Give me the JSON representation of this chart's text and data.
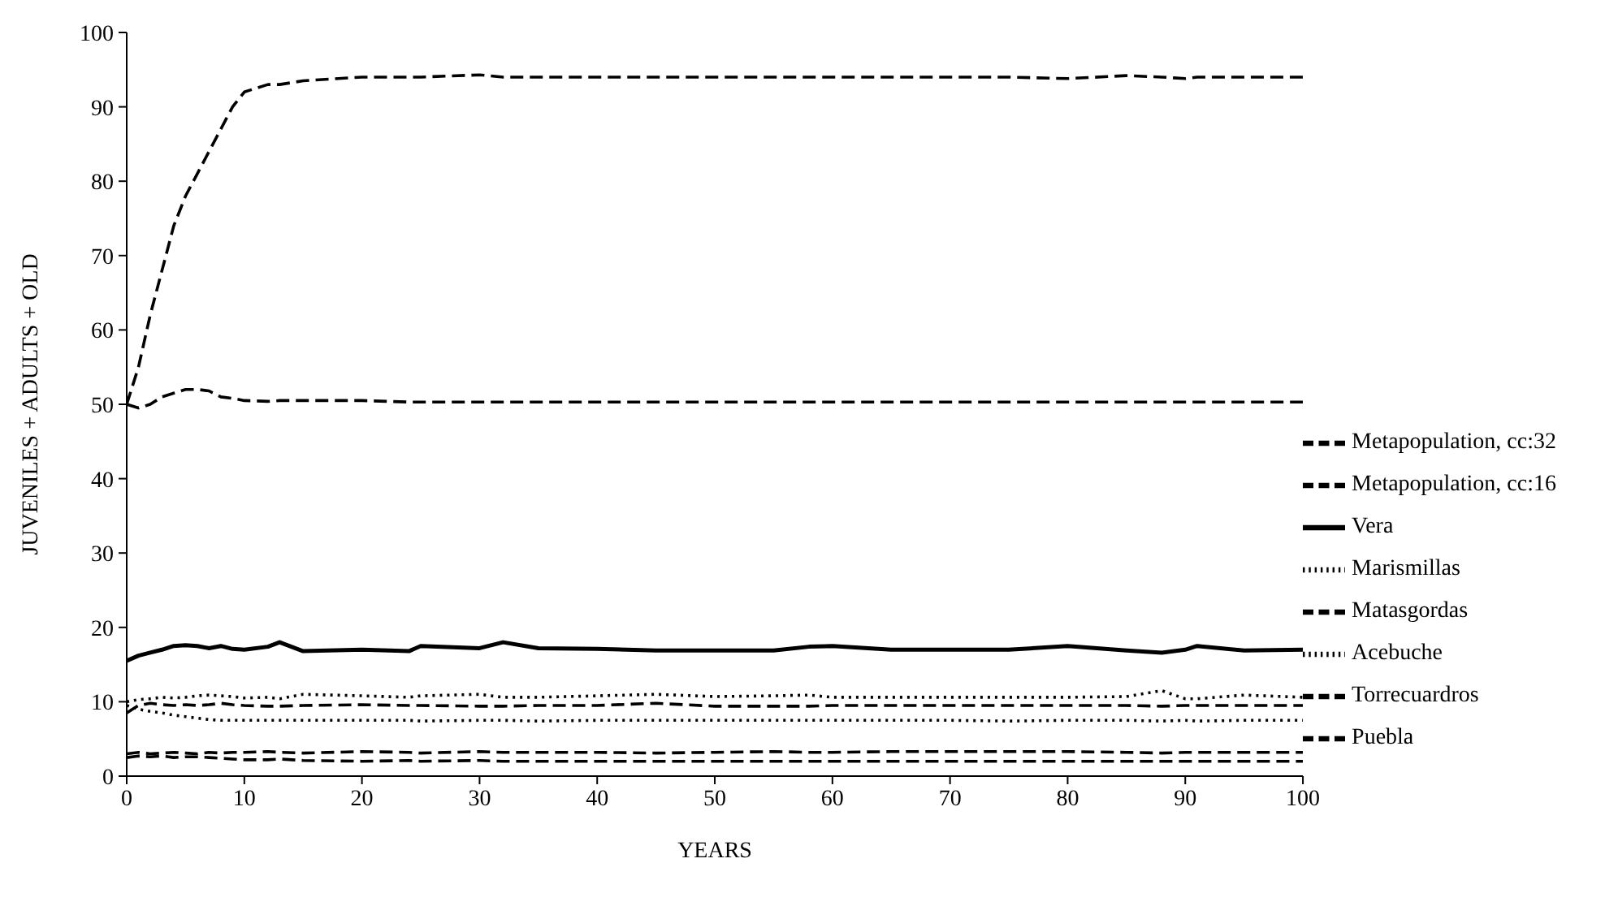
{
  "chart_data": {
    "type": "line",
    "xlabel": "YEARS",
    "ylabel": "JUVENILES + ADULTS + OLD",
    "x": [
      0,
      1,
      2,
      3,
      4,
      5,
      6,
      7,
      8,
      9,
      10,
      12,
      13,
      15,
      20,
      24,
      25,
      30,
      32,
      35,
      40,
      45,
      50,
      55,
      58,
      60,
      65,
      70,
      75,
      80,
      85,
      88,
      90,
      91,
      95,
      100
    ],
    "xlim": [
      0,
      100
    ],
    "xticks": [
      0,
      10,
      20,
      30,
      40,
      50,
      60,
      70,
      80,
      90,
      100
    ],
    "ylim": [
      0,
      100
    ],
    "yticks": [
      0,
      10,
      20,
      30,
      40,
      50,
      60,
      70,
      80,
      90,
      100
    ],
    "grid": false,
    "legend": "bottom right",
    "marker": "none",
    "series": [
      {
        "name": "Metapopulation, cc:32",
        "color": "#000000",
        "line_style": "dashed",
        "values": [
          50,
          55,
          62,
          68,
          74,
          78,
          81,
          84,
          87,
          90,
          92,
          93,
          93,
          93.5,
          94,
          94,
          94,
          94.3,
          94,
          94,
          94,
          94,
          94,
          94,
          94,
          94,
          94,
          94,
          94,
          93.8,
          94.2,
          94,
          93.8,
          94,
          94,
          94
        ]
      },
      {
        "name": "Metapopulation, cc:16",
        "color": "#000000",
        "line_style": "dashed",
        "values": [
          50,
          49.5,
          50,
          51,
          51.5,
          52,
          52,
          51.8,
          51,
          50.8,
          50.5,
          50.4,
          50.5,
          50.5,
          50.5,
          50.3,
          50.3,
          50.3,
          50.3,
          50.3,
          50.3,
          50.3,
          50.3,
          50.3,
          50.3,
          50.3,
          50.3,
          50.3,
          50.3,
          50.3,
          50.3,
          50.3,
          50.3,
          50.3,
          50.3,
          50.3
        ]
      },
      {
        "name": "Vera",
        "color": "#000000",
        "line_style": "solid",
        "values": [
          15.5,
          16.2,
          16.6,
          17,
          17.5,
          17.6,
          17.5,
          17.2,
          17.5,
          17.1,
          17,
          17.4,
          18,
          16.8,
          17,
          16.8,
          17.5,
          17.2,
          18,
          17.2,
          17.1,
          16.9,
          16.9,
          16.9,
          17.4,
          17.5,
          17,
          17,
          17,
          17.5,
          16.9,
          16.6,
          17,
          17.5,
          16.9,
          17
        ]
      },
      {
        "name": "Marismillas",
        "color": "#000000",
        "line_style": "dotted",
        "values": [
          10,
          10.3,
          10.4,
          10.6,
          10.5,
          10.6,
          10.8,
          10.9,
          10.8,
          10.7,
          10.5,
          10.6,
          10.4,
          11,
          10.8,
          10.6,
          10.8,
          11,
          10.6,
          10.6,
          10.8,
          11,
          10.7,
          10.8,
          10.9,
          10.6,
          10.6,
          10.6,
          10.6,
          10.6,
          10.7,
          11.5,
          10.4,
          10.4,
          10.9,
          10.6
        ]
      },
      {
        "name": "Matasgordas",
        "color": "#000000",
        "line_style": "dashed",
        "values": [
          8.5,
          9.5,
          9.8,
          9.6,
          9.5,
          9.6,
          9.5,
          9.6,
          9.8,
          9.6,
          9.5,
          9.4,
          9.4,
          9.5,
          9.6,
          9.5,
          9.5,
          9.4,
          9.4,
          9.5,
          9.5,
          9.8,
          9.4,
          9.4,
          9.4,
          9.5,
          9.5,
          9.5,
          9.5,
          9.5,
          9.5,
          9.4,
          9.5,
          9.5,
          9.5,
          9.5
        ]
      },
      {
        "name": "Acebuche",
        "color": "#000000",
        "line_style": "dotted",
        "values": [
          9.5,
          9,
          8.7,
          8.5,
          8.2,
          8,
          7.8,
          7.6,
          7.5,
          7.5,
          7.5,
          7.5,
          7.5,
          7.5,
          7.5,
          7.5,
          7.4,
          7.5,
          7.5,
          7.4,
          7.5,
          7.5,
          7.5,
          7.5,
          7.5,
          7.5,
          7.5,
          7.5,
          7.4,
          7.5,
          7.5,
          7.4,
          7.5,
          7.4,
          7.5,
          7.5
        ]
      },
      {
        "name": "Torrecuardros",
        "color": "#000000",
        "line_style": "dashed",
        "values": [
          3,
          3.2,
          3,
          3.1,
          3.2,
          3.1,
          3,
          3.2,
          3.1,
          3.2,
          3.2,
          3.3,
          3.2,
          3.1,
          3.3,
          3.2,
          3.1,
          3.3,
          3.2,
          3.2,
          3.2,
          3.1,
          3.2,
          3.3,
          3.2,
          3.2,
          3.3,
          3.3,
          3.3,
          3.3,
          3.2,
          3.1,
          3.2,
          3.2,
          3.2,
          3.2
        ]
      },
      {
        "name": "Puebla",
        "color": "#000000",
        "line_style": "dashed",
        "values": [
          2.5,
          2.7,
          2.6,
          2.7,
          2.5,
          2.6,
          2.6,
          2.5,
          2.4,
          2.3,
          2.2,
          2.2,
          2.3,
          2.1,
          2,
          2.1,
          2,
          2.1,
          2,
          2,
          2,
          2,
          2,
          2,
          2,
          2,
          2,
          2,
          2,
          2,
          2,
          2,
          2,
          2,
          2,
          2
        ]
      }
    ]
  }
}
